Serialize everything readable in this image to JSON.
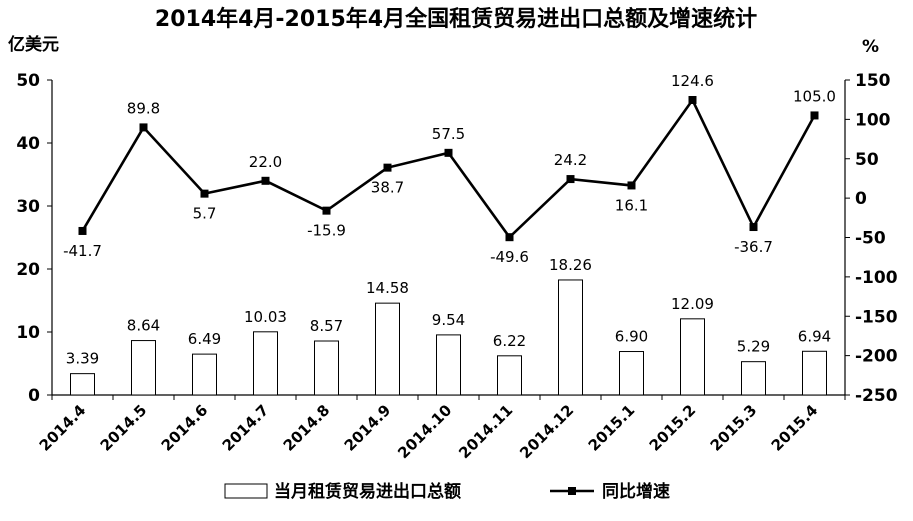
{
  "chart_data": {
    "type": "bar+line",
    "title": "2014年4月-2015年4月全国租赁贸易进出口总额及增速统计",
    "categories": [
      "2014.4",
      "2014.5",
      "2014.6",
      "2014.7",
      "2014.8",
      "2014.9",
      "2014.10",
      "2014.11",
      "2014.12",
      "2015.1",
      "2015.2",
      "2015.3",
      "2015.4"
    ],
    "series": [
      {
        "name": "当月租赁贸易进出口总额",
        "type": "bar",
        "axis": "left",
        "values": [
          3.39,
          8.64,
          6.49,
          10.03,
          8.57,
          14.58,
          9.54,
          6.22,
          18.26,
          6.9,
          12.09,
          5.29,
          6.94
        ],
        "labels": [
          "3.39",
          "8.64",
          "6.49",
          "10.03",
          "8.57",
          "14.58",
          "9.54",
          "6.22",
          "18.26",
          "6.90",
          "12.09",
          "5.29",
          "6.94"
        ],
        "color": "#ffffff"
      },
      {
        "name": "同比增速",
        "type": "line",
        "axis": "right",
        "values": [
          -41.7,
          89.8,
          5.7,
          22.0,
          -15.9,
          38.7,
          57.5,
          -49.6,
          24.2,
          16.1,
          124.6,
          -36.7,
          105.0
        ],
        "labels": [
          "-41.7",
          "89.8",
          "5.7",
          "22.0",
          "-15.9",
          "38.7",
          "57.5",
          "-49.6",
          "24.2",
          "16.1",
          "124.6",
          "-36.7",
          "105.0"
        ],
        "color": "#000000"
      }
    ],
    "y_left": {
      "label": "亿美元",
      "range": [
        0,
        50
      ],
      "ticks": [
        0,
        10,
        20,
        30,
        40,
        50
      ]
    },
    "y_right": {
      "label": "%",
      "range": [
        -250,
        150
      ],
      "ticks": [
        -250,
        -200,
        -150,
        -100,
        -50,
        0,
        50,
        100,
        150
      ]
    },
    "grid": false,
    "legend": "bottom"
  }
}
